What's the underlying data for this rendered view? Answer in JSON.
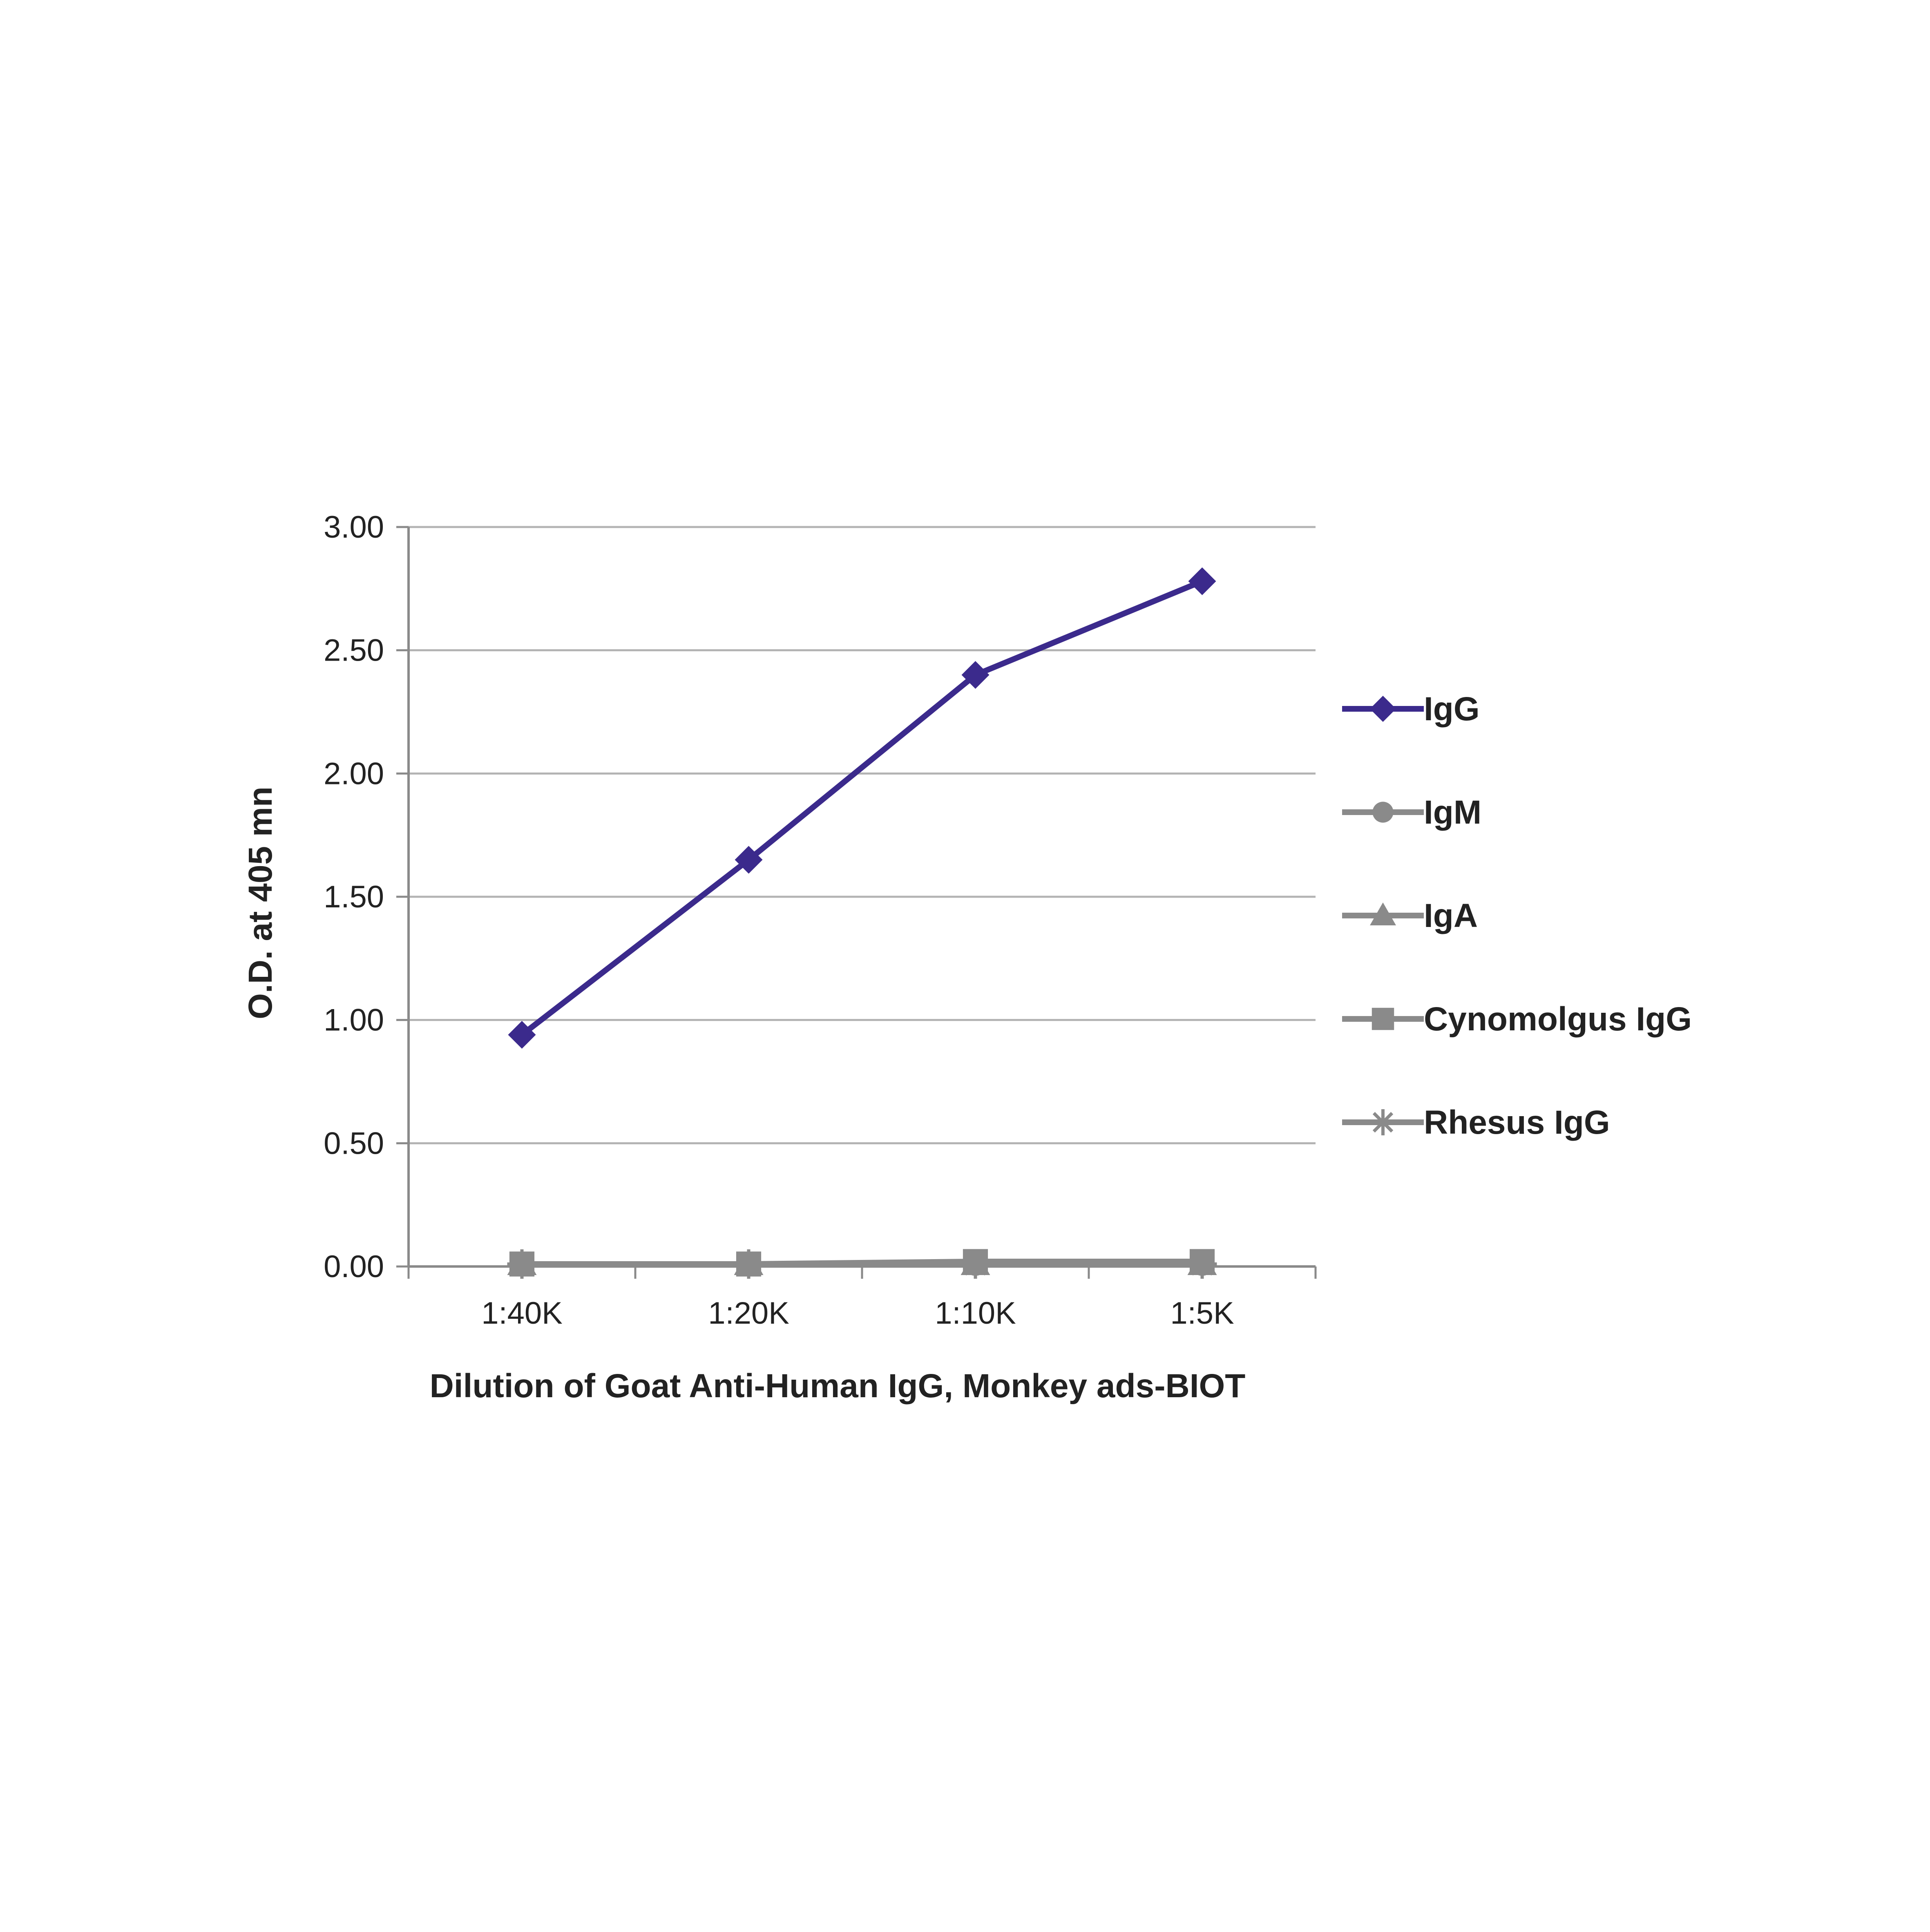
{
  "chart_data": {
    "type": "line",
    "title": "",
    "xlabel": "Dilution of Goat Anti-Human IgG, Monkey ads-BIOT",
    "ylabel": "O.D. at 405 mn",
    "categories": [
      "1:40K",
      "1:20K",
      "1:10K",
      "1:5K"
    ],
    "ylim": [
      0,
      3
    ],
    "yticks": [
      "0.00",
      "0.50",
      "1.00",
      "1.50",
      "2.00",
      "2.50",
      "3.00"
    ],
    "ytick_values": [
      0,
      0.5,
      1.0,
      1.5,
      2.0,
      2.5,
      3.0
    ],
    "grid": true,
    "legend_position": "right",
    "series": [
      {
        "name": "IgG",
        "values": [
          0.94,
          1.65,
          2.4,
          2.78
        ],
        "color": "#3b2a8c",
        "marker": "diamond"
      },
      {
        "name": "IgM",
        "values": [
          0.01,
          0.01,
          0.01,
          0.01
        ],
        "color": "#8a8a8a",
        "marker": "circle"
      },
      {
        "name": "IgA",
        "values": [
          0.01,
          0.01,
          0.01,
          0.01
        ],
        "color": "#8a8a8a",
        "marker": "triangle"
      },
      {
        "name": "Cynomolgus IgG",
        "values": [
          0.01,
          0.01,
          0.02,
          0.02
        ],
        "color": "#8a8a8a",
        "marker": "square"
      },
      {
        "name": "Rhesus IgG",
        "values": [
          0.01,
          0.01,
          0.01,
          0.01
        ],
        "color": "#8a8a8a",
        "marker": "star"
      }
    ]
  }
}
